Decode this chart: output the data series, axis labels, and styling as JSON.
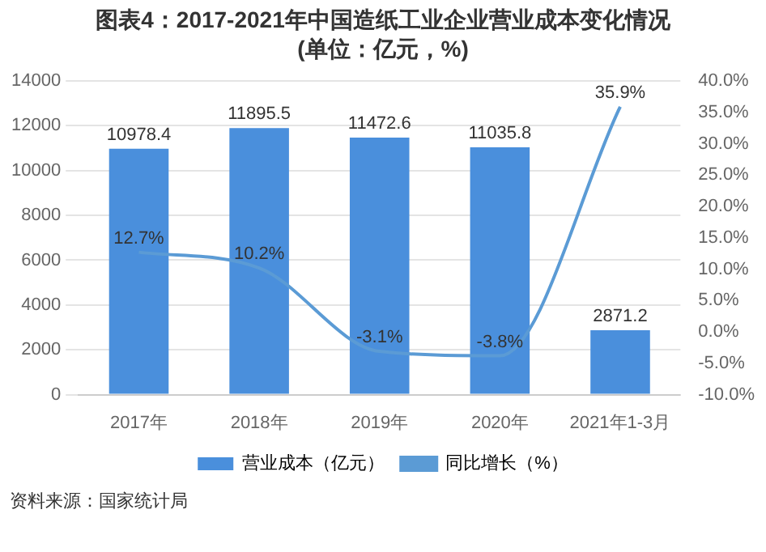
{
  "chart_data": {
    "type": "bar",
    "title": "图表4：2017-2021年中国造纸工业企业营业成本变化情况",
    "subtitle": "(单位：亿元，%)",
    "categories": [
      "2017年",
      "2018年",
      "2019年",
      "2020年",
      "2021年1-3月"
    ],
    "series": [
      {
        "name": "营业成本（亿元）",
        "color": "#4a8fdc",
        "values": [
          10978.4,
          11895.5,
          11472.6,
          11035.8,
          2871.2
        ],
        "value_labels": [
          "10978.4",
          "11895.5",
          "11472.6",
          "11035.8",
          "2871.2"
        ]
      },
      {
        "name": "同比增长（%）",
        "type": "line",
        "axis": "y2",
        "color": "#5b9bd5",
        "values": [
          12.7,
          10.2,
          -3.1,
          -3.8,
          35.9
        ],
        "value_labels": [
          "12.7%",
          "10.2%",
          "-3.1%",
          "-3.8%",
          "35.9%"
        ]
      }
    ],
    "ylim": [
      0,
      14000
    ],
    "yticks": [
      0,
      2000,
      4000,
      6000,
      8000,
      10000,
      12000,
      14000
    ],
    "y2lim": [
      -10,
      40
    ],
    "y2ticks": [
      {
        "value": -10,
        "label": "-10.0%"
      },
      {
        "value": -5,
        "label": "-5.0%"
      },
      {
        "value": 0,
        "label": "0.0%"
      },
      {
        "value": 5,
        "label": "5.0%"
      },
      {
        "value": 10,
        "label": "10.0%"
      },
      {
        "value": 15,
        "label": "15.0%"
      },
      {
        "value": 20,
        "label": "20.0%"
      },
      {
        "value": 25,
        "label": "25.0%"
      },
      {
        "value": 30,
        "label": "30.0%"
      },
      {
        "value": 35,
        "label": "35.0%"
      },
      {
        "value": 40,
        "label": "40.0%"
      }
    ],
    "grid": "y",
    "legend": "bottom",
    "marker": "none",
    "line_style": "solid",
    "annotations": [
      "资料来源：国家统计局"
    ]
  }
}
